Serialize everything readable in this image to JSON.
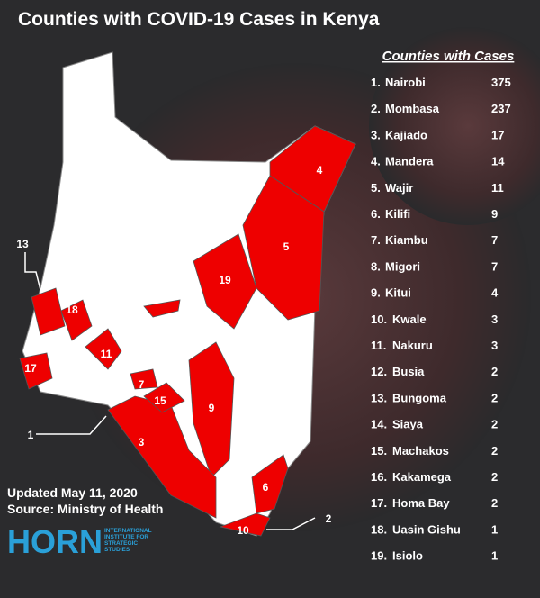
{
  "title": "Counties with COVID-19 Cases in Kenya",
  "legend": {
    "heading": "Counties with Cases",
    "rows": [
      {
        "rank": "1.",
        "county": "Nairobi",
        "cases": 375
      },
      {
        "rank": "2.",
        "county": "Mombasa",
        "cases": 237
      },
      {
        "rank": "3.",
        "county": "Kajiado",
        "cases": 17
      },
      {
        "rank": "4.",
        "county": "Mandera",
        "cases": 14
      },
      {
        "rank": "5.",
        "county": "Wajir",
        "cases": 11
      },
      {
        "rank": "6.",
        "county": "Kilifi",
        "cases": 9
      },
      {
        "rank": "7.",
        "county": "Kiambu",
        "cases": 7
      },
      {
        "rank": "8.",
        "county": "Migori",
        "cases": 7
      },
      {
        "rank": "9.",
        "county": "Kitui",
        "cases": 4
      },
      {
        "rank": "10.",
        "county": "Kwale",
        "cases": 3
      },
      {
        "rank": "11.",
        "county": "Nakuru",
        "cases": 3
      },
      {
        "rank": "12.",
        "county": "Busia",
        "cases": 2
      },
      {
        "rank": "13.",
        "county": "Bungoma",
        "cases": 2
      },
      {
        "rank": "14.",
        "county": "Siaya",
        "cases": 2
      },
      {
        "rank": "15.",
        "county": "Machakos",
        "cases": 2
      },
      {
        "rank": "16.",
        "county": "Kakamega",
        "cases": 2
      },
      {
        "rank": "17.",
        "county": "Homa Bay",
        "cases": 2
      },
      {
        "rank": "18.",
        "county": "Uasin Gishu",
        "cases": 1
      },
      {
        "rank": "19.",
        "county": "Isiolo",
        "cases": 1
      }
    ]
  },
  "map_labels": [
    "4",
    "5",
    "19",
    "13",
    "18",
    "11",
    "17",
    "7",
    "15",
    "9",
    "3",
    "6",
    "10",
    "1",
    "2"
  ],
  "updated": "Updated May 11, 2020",
  "source": "Source: Ministry of Health",
  "logo": {
    "name": "HORN",
    "tagline": "INTERNATIONAL INSTITUTE FOR STRATEGIC STUDIES"
  }
}
